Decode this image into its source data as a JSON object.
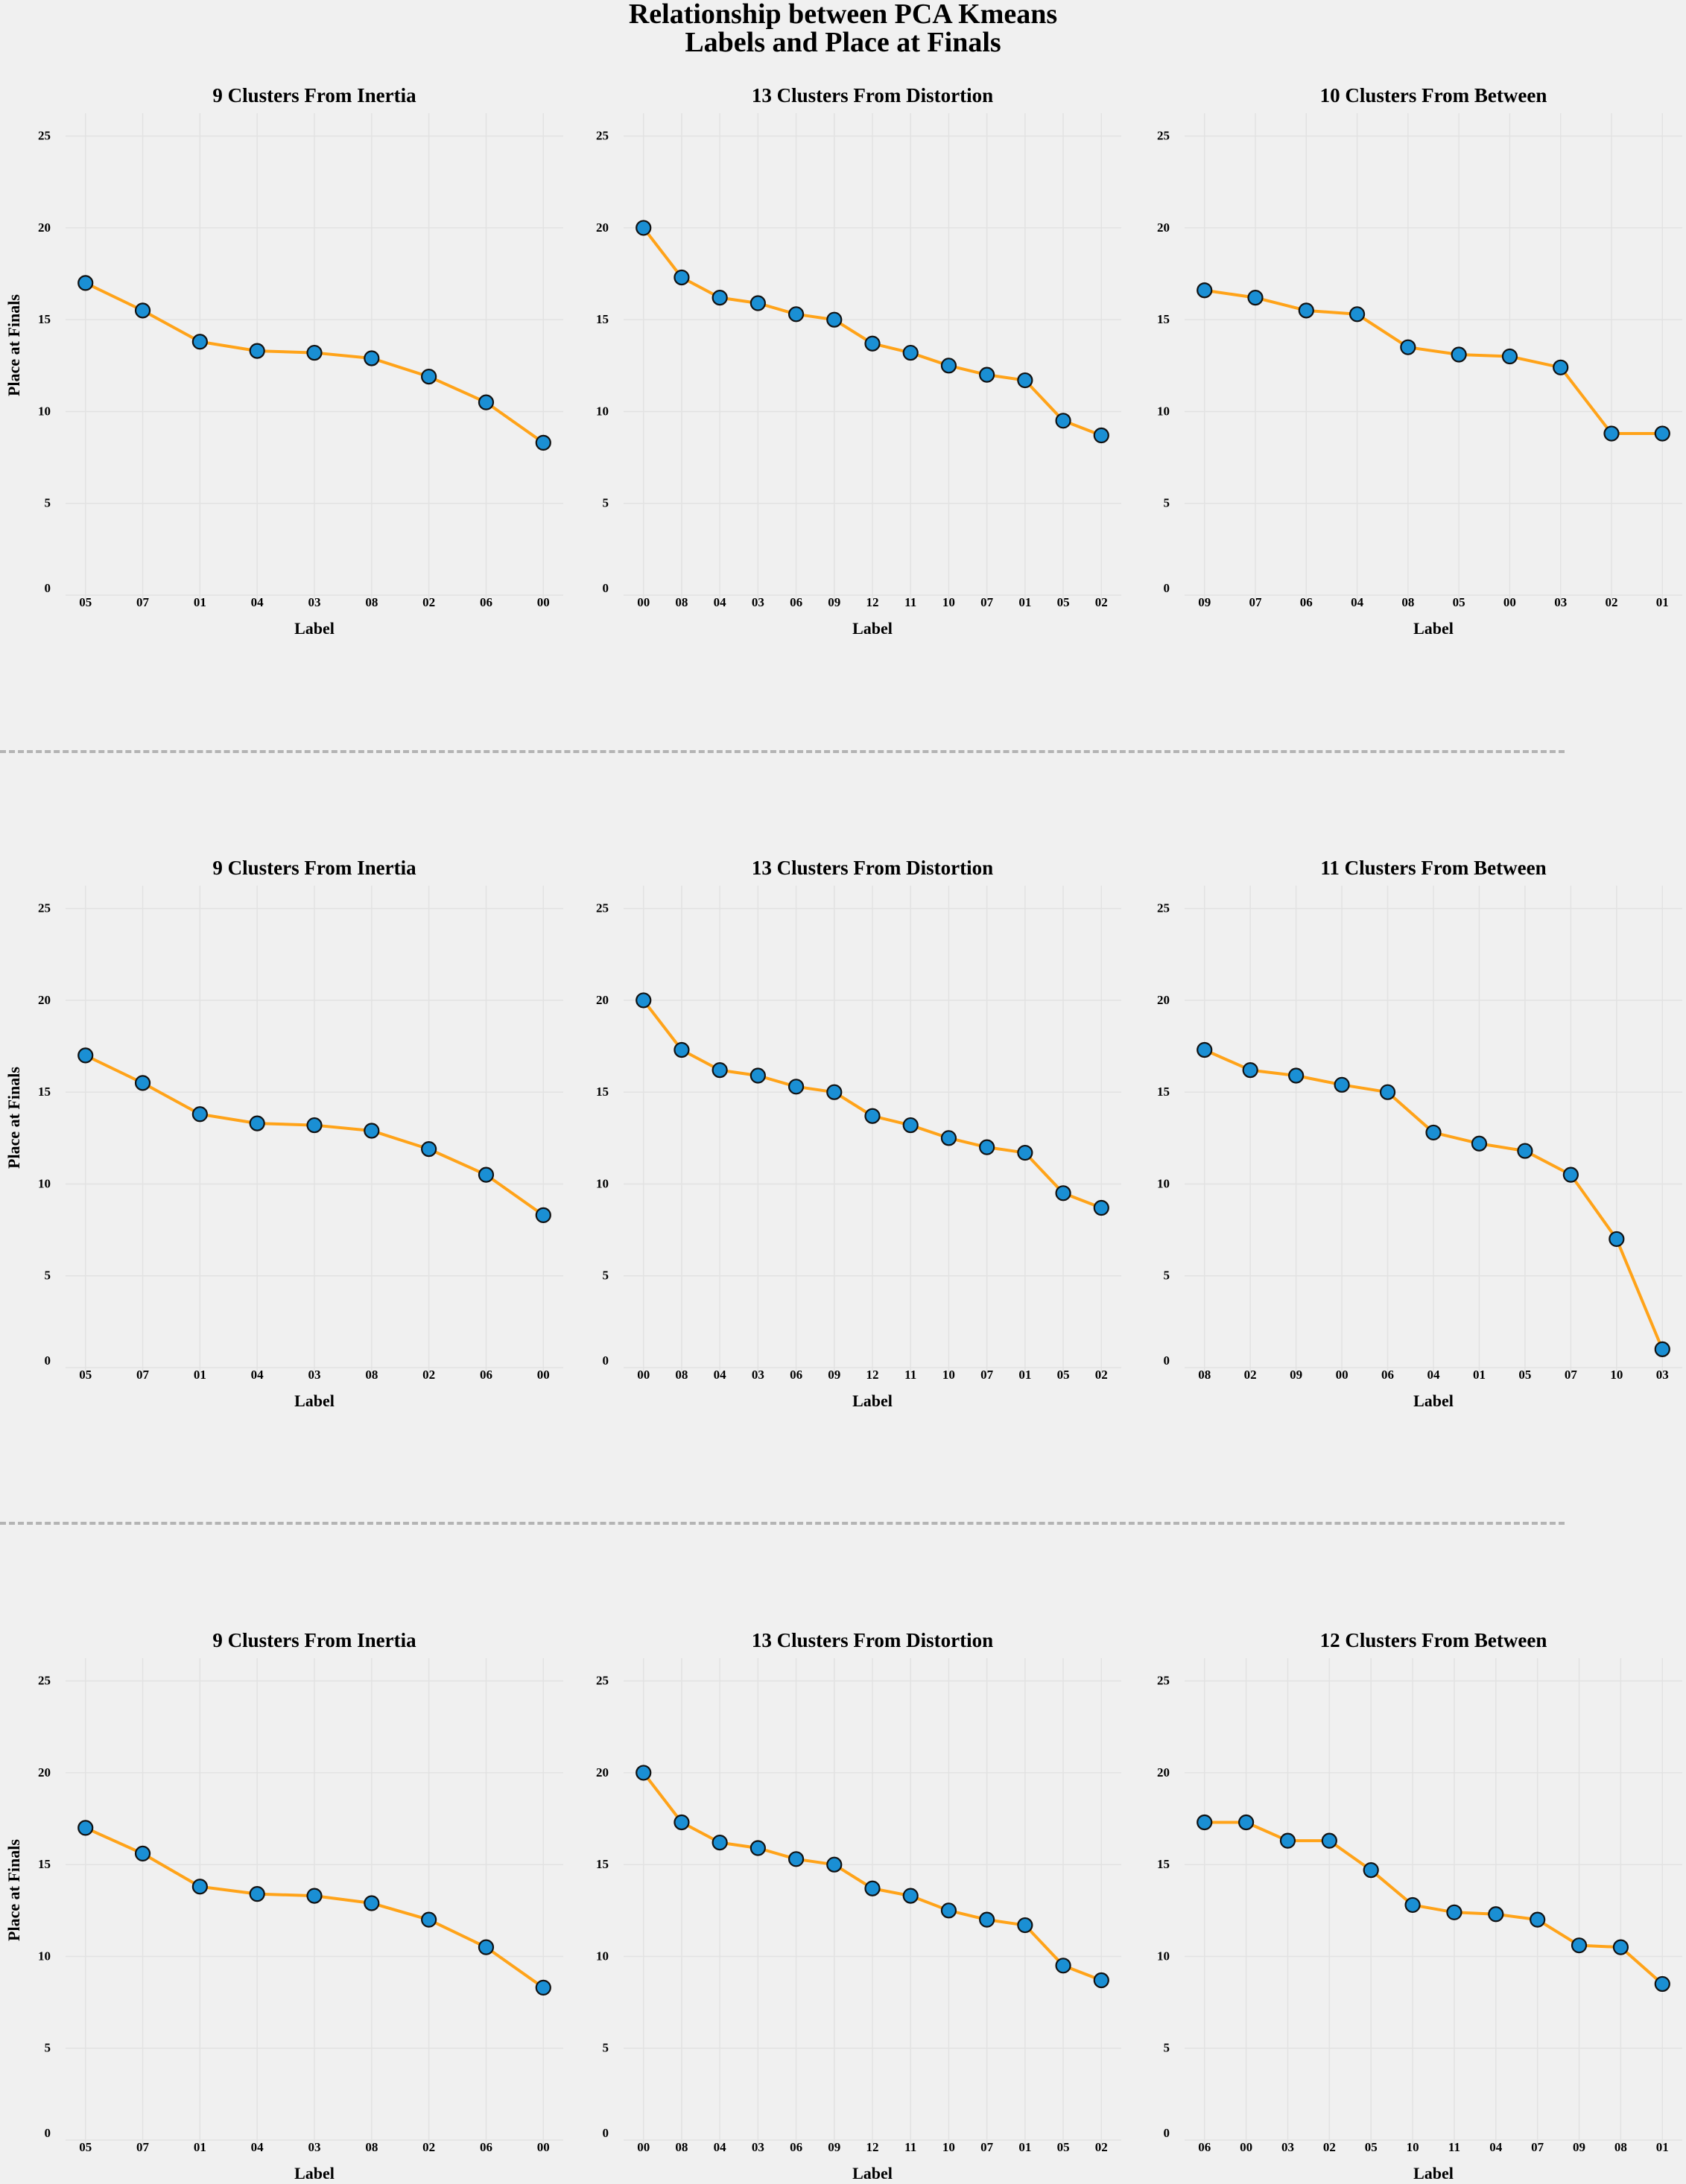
{
  "figure": {
    "title_line1": "Relationship between PCA Kmeans",
    "title_line2": "Labels and Place at Finals",
    "background": "#f0f0f0",
    "line_color": "#ffa319",
    "marker_color": "#1a8fd4",
    "marker_edge": "#111111",
    "grid_color": "#e2e2e2",
    "separator_color": "#b4b4b4"
  },
  "chart_data": [
    {
      "type": "line",
      "title": "9 Clusters From Inertia",
      "xlabel": "Label",
      "ylabel": "Place at Finals",
      "ylim": [
        0,
        26
      ],
      "yticks": [
        0,
        5,
        10,
        15,
        20,
        25
      ],
      "categories": [
        "05",
        "07",
        "01",
        "04",
        "03",
        "08",
        "02",
        "06",
        "00"
      ],
      "values": [
        17.0,
        15.5,
        13.8,
        13.3,
        13.2,
        12.9,
        11.9,
        10.5,
        8.3
      ]
    },
    {
      "type": "line",
      "title": "13 Clusters From Distortion",
      "xlabel": "Label",
      "ylabel": "",
      "ylim": [
        0,
        26
      ],
      "yticks": [
        0,
        5,
        10,
        15,
        20,
        25
      ],
      "categories": [
        "00",
        "08",
        "04",
        "03",
        "06",
        "09",
        "12",
        "11",
        "10",
        "07",
        "01",
        "05",
        "02"
      ],
      "values": [
        20.0,
        17.3,
        16.2,
        15.9,
        15.3,
        15.0,
        13.7,
        13.2,
        12.5,
        12.0,
        11.7,
        9.5,
        8.7
      ]
    },
    {
      "type": "line",
      "title": "10 Clusters From Between",
      "xlabel": "Label",
      "ylabel": "",
      "ylim": [
        0,
        26
      ],
      "yticks": [
        0,
        5,
        10,
        15,
        20,
        25
      ],
      "categories": [
        "09",
        "07",
        "06",
        "04",
        "08",
        "05",
        "00",
        "03",
        "02",
        "01"
      ],
      "values": [
        16.6,
        16.2,
        15.5,
        15.3,
        13.5,
        13.1,
        13.0,
        12.4,
        8.8,
        8.8
      ]
    },
    {
      "type": "line",
      "title": "9 Clusters From Inertia",
      "xlabel": "Label",
      "ylabel": "Place at Finals",
      "ylim": [
        0,
        26
      ],
      "yticks": [
        0,
        5,
        10,
        15,
        20,
        25
      ],
      "categories": [
        "05",
        "07",
        "01",
        "04",
        "03",
        "08",
        "02",
        "06",
        "00"
      ],
      "values": [
        17.0,
        15.5,
        13.8,
        13.3,
        13.2,
        12.9,
        11.9,
        10.5,
        8.3
      ]
    },
    {
      "type": "line",
      "title": "13 Clusters From Distortion",
      "xlabel": "Label",
      "ylabel": "",
      "ylim": [
        0,
        26
      ],
      "yticks": [
        0,
        5,
        10,
        15,
        20,
        25
      ],
      "categories": [
        "00",
        "08",
        "04",
        "03",
        "06",
        "09",
        "12",
        "11",
        "10",
        "07",
        "01",
        "05",
        "02"
      ],
      "values": [
        20.0,
        17.3,
        16.2,
        15.9,
        15.3,
        15.0,
        13.7,
        13.2,
        12.5,
        12.0,
        11.7,
        9.5,
        8.7
      ]
    },
    {
      "type": "line",
      "title": "11 Clusters From Between",
      "xlabel": "Label",
      "ylabel": "",
      "ylim": [
        0,
        26
      ],
      "yticks": [
        0,
        5,
        10,
        15,
        20,
        25
      ],
      "categories": [
        "08",
        "02",
        "09",
        "00",
        "06",
        "04",
        "01",
        "05",
        "07",
        "10",
        "03"
      ],
      "values": [
        17.3,
        16.2,
        15.9,
        15.4,
        15.0,
        12.8,
        12.2,
        11.8,
        10.5,
        7.0,
        1.0
      ]
    },
    {
      "type": "line",
      "title": "9 Clusters From Inertia",
      "xlabel": "Label",
      "ylabel": "Place at Finals",
      "ylim": [
        0,
        26
      ],
      "yticks": [
        0,
        5,
        10,
        15,
        20,
        25
      ],
      "categories": [
        "05",
        "07",
        "01",
        "04",
        "03",
        "08",
        "02",
        "06",
        "00"
      ],
      "values": [
        17.0,
        15.6,
        13.8,
        13.4,
        13.3,
        12.9,
        12.0,
        10.5,
        8.3
      ]
    },
    {
      "type": "line",
      "title": "13 Clusters From Distortion",
      "xlabel": "Label",
      "ylabel": "",
      "ylim": [
        0,
        26
      ],
      "yticks": [
        0,
        5,
        10,
        15,
        20,
        25
      ],
      "categories": [
        "00",
        "08",
        "04",
        "03",
        "06",
        "09",
        "12",
        "11",
        "10",
        "07",
        "01",
        "05",
        "02"
      ],
      "values": [
        20.0,
        17.3,
        16.2,
        15.9,
        15.3,
        15.0,
        13.7,
        13.3,
        12.5,
        12.0,
        11.7,
        9.5,
        8.7
      ]
    },
    {
      "type": "line",
      "title": "12 Clusters From Between",
      "xlabel": "Label",
      "ylabel": "",
      "ylim": [
        0,
        26
      ],
      "yticks": [
        0,
        5,
        10,
        15,
        20,
        25
      ],
      "categories": [
        "06",
        "00",
        "03",
        "02",
        "05",
        "10",
        "11",
        "04",
        "07",
        "09",
        "08",
        "01"
      ],
      "values": [
        17.3,
        17.3,
        16.3,
        16.3,
        14.7,
        12.8,
        12.4,
        12.3,
        12.0,
        10.6,
        10.5,
        8.5
      ]
    }
  ]
}
